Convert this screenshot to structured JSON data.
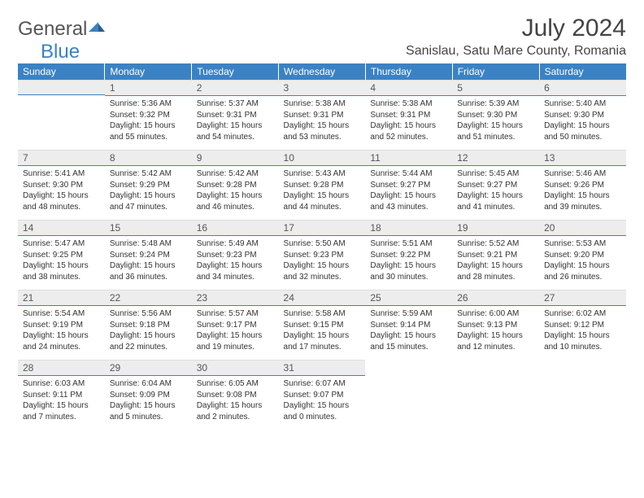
{
  "logo": {
    "text1": "General",
    "text2": "Blue"
  },
  "title": "July 2024",
  "subtitle": "Sanislau, Satu Mare County, Romania",
  "colors": {
    "header_bg": "#3b82c4",
    "header_fg": "#ffffff",
    "daynum_bg": "#ededed",
    "rule": "#3b82c4",
    "page_bg": "#ffffff",
    "text": "#333333"
  },
  "typography": {
    "title_fontsize": 30,
    "subtitle_fontsize": 16,
    "dayhead_fontsize": 12,
    "body_fontsize": 10
  },
  "calendar": {
    "type": "table",
    "columns": [
      "Sunday",
      "Monday",
      "Tuesday",
      "Wednesday",
      "Thursday",
      "Friday",
      "Saturday"
    ],
    "first_weekday_index": 1,
    "days": [
      {
        "n": 1,
        "sunrise": "5:36 AM",
        "sunset": "9:32 PM",
        "daylight": "15 hours and 55 minutes."
      },
      {
        "n": 2,
        "sunrise": "5:37 AM",
        "sunset": "9:31 PM",
        "daylight": "15 hours and 54 minutes."
      },
      {
        "n": 3,
        "sunrise": "5:38 AM",
        "sunset": "9:31 PM",
        "daylight": "15 hours and 53 minutes."
      },
      {
        "n": 4,
        "sunrise": "5:38 AM",
        "sunset": "9:31 PM",
        "daylight": "15 hours and 52 minutes."
      },
      {
        "n": 5,
        "sunrise": "5:39 AM",
        "sunset": "9:30 PM",
        "daylight": "15 hours and 51 minutes."
      },
      {
        "n": 6,
        "sunrise": "5:40 AM",
        "sunset": "9:30 PM",
        "daylight": "15 hours and 50 minutes."
      },
      {
        "n": 7,
        "sunrise": "5:41 AM",
        "sunset": "9:30 PM",
        "daylight": "15 hours and 48 minutes."
      },
      {
        "n": 8,
        "sunrise": "5:42 AM",
        "sunset": "9:29 PM",
        "daylight": "15 hours and 47 minutes."
      },
      {
        "n": 9,
        "sunrise": "5:42 AM",
        "sunset": "9:28 PM",
        "daylight": "15 hours and 46 minutes."
      },
      {
        "n": 10,
        "sunrise": "5:43 AM",
        "sunset": "9:28 PM",
        "daylight": "15 hours and 44 minutes."
      },
      {
        "n": 11,
        "sunrise": "5:44 AM",
        "sunset": "9:27 PM",
        "daylight": "15 hours and 43 minutes."
      },
      {
        "n": 12,
        "sunrise": "5:45 AM",
        "sunset": "9:27 PM",
        "daylight": "15 hours and 41 minutes."
      },
      {
        "n": 13,
        "sunrise": "5:46 AM",
        "sunset": "9:26 PM",
        "daylight": "15 hours and 39 minutes."
      },
      {
        "n": 14,
        "sunrise": "5:47 AM",
        "sunset": "9:25 PM",
        "daylight": "15 hours and 38 minutes."
      },
      {
        "n": 15,
        "sunrise": "5:48 AM",
        "sunset": "9:24 PM",
        "daylight": "15 hours and 36 minutes."
      },
      {
        "n": 16,
        "sunrise": "5:49 AM",
        "sunset": "9:23 PM",
        "daylight": "15 hours and 34 minutes."
      },
      {
        "n": 17,
        "sunrise": "5:50 AM",
        "sunset": "9:23 PM",
        "daylight": "15 hours and 32 minutes."
      },
      {
        "n": 18,
        "sunrise": "5:51 AM",
        "sunset": "9:22 PM",
        "daylight": "15 hours and 30 minutes."
      },
      {
        "n": 19,
        "sunrise": "5:52 AM",
        "sunset": "9:21 PM",
        "daylight": "15 hours and 28 minutes."
      },
      {
        "n": 20,
        "sunrise": "5:53 AM",
        "sunset": "9:20 PM",
        "daylight": "15 hours and 26 minutes."
      },
      {
        "n": 21,
        "sunrise": "5:54 AM",
        "sunset": "9:19 PM",
        "daylight": "15 hours and 24 minutes."
      },
      {
        "n": 22,
        "sunrise": "5:56 AM",
        "sunset": "9:18 PM",
        "daylight": "15 hours and 22 minutes."
      },
      {
        "n": 23,
        "sunrise": "5:57 AM",
        "sunset": "9:17 PM",
        "daylight": "15 hours and 19 minutes."
      },
      {
        "n": 24,
        "sunrise": "5:58 AM",
        "sunset": "9:15 PM",
        "daylight": "15 hours and 17 minutes."
      },
      {
        "n": 25,
        "sunrise": "5:59 AM",
        "sunset": "9:14 PM",
        "daylight": "15 hours and 15 minutes."
      },
      {
        "n": 26,
        "sunrise": "6:00 AM",
        "sunset": "9:13 PM",
        "daylight": "15 hours and 12 minutes."
      },
      {
        "n": 27,
        "sunrise": "6:02 AM",
        "sunset": "9:12 PM",
        "daylight": "15 hours and 10 minutes."
      },
      {
        "n": 28,
        "sunrise": "6:03 AM",
        "sunset": "9:11 PM",
        "daylight": "15 hours and 7 minutes."
      },
      {
        "n": 29,
        "sunrise": "6:04 AM",
        "sunset": "9:09 PM",
        "daylight": "15 hours and 5 minutes."
      },
      {
        "n": 30,
        "sunrise": "6:05 AM",
        "sunset": "9:08 PM",
        "daylight": "15 hours and 2 minutes."
      },
      {
        "n": 31,
        "sunrise": "6:07 AM",
        "sunset": "9:07 PM",
        "daylight": "15 hours and 0 minutes."
      }
    ],
    "labels": {
      "sunrise_prefix": "Sunrise: ",
      "sunset_prefix": "Sunset: ",
      "daylight_prefix": "Daylight: "
    }
  }
}
